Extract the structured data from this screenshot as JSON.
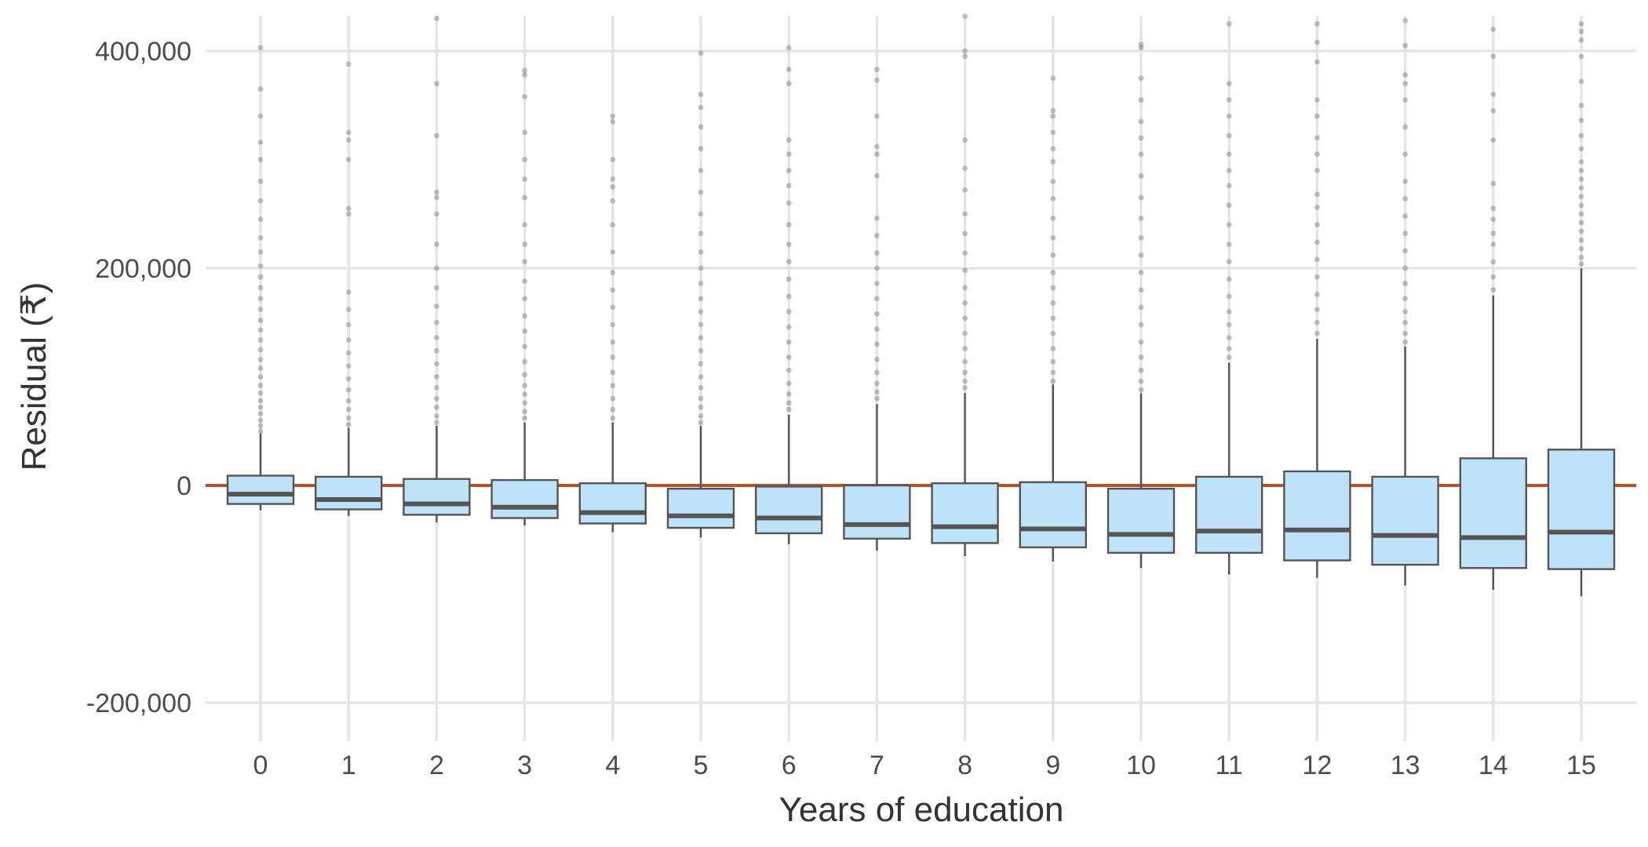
{
  "chart_data": {
    "type": "boxplot",
    "title": "",
    "xlabel": "Years of education",
    "ylabel": "Residual (₹)",
    "ylim": [
      -235000,
      430000
    ],
    "y_ticks": [
      -200000,
      0,
      200000,
      400000
    ],
    "y_tick_labels": [
      "-200,000",
      "0",
      "200,000",
      "400,000"
    ],
    "grid": true,
    "reference_line": {
      "y": 0,
      "color": "#b5522a"
    },
    "box_fill": "#bee3f8",
    "box_stroke": "#555555",
    "categories": [
      "0",
      "1",
      "2",
      "3",
      "4",
      "5",
      "6",
      "7",
      "8",
      "9",
      "10",
      "11",
      "12",
      "13",
      "14",
      "15"
    ],
    "boxes": [
      {
        "category": "0",
        "whisker_low": -23000,
        "q1": -17000,
        "median": -8000,
        "q3": 9000,
        "whisker_high": 48000,
        "outliers": [
          50000,
          55000,
          60000,
          66000,
          72000,
          78000,
          85000,
          92000,
          100000,
          108000,
          116000,
          125000,
          134000,
          143000,
          152000,
          162000,
          172000,
          182000,
          192000,
          202000,
          215000,
          228000,
          245000,
          262000,
          280000,
          300000,
          316000,
          340000,
          365000,
          403000
        ]
      },
      {
        "category": "1",
        "whisker_low": -28000,
        "q1": -22000,
        "median": -13000,
        "q3": 8000,
        "whisker_high": 53000,
        "outliers": [
          56000,
          62000,
          70000,
          78000,
          88000,
          98000,
          110000,
          122000,
          134000,
          148000,
          162000,
          178000,
          250000,
          255000,
          300000,
          318000,
          325000,
          388000
        ]
      },
      {
        "category": "2",
        "whisker_low": -34000,
        "q1": -27000,
        "median": -17000,
        "q3": 6000,
        "whisker_high": 55000,
        "outliers": [
          58000,
          64000,
          72000,
          80000,
          90000,
          100000,
          112000,
          124000,
          136000,
          150000,
          165000,
          182000,
          200000,
          222000,
          250000,
          265000,
          270000,
          322000,
          370000,
          430000
        ]
      },
      {
        "category": "3",
        "whisker_low": -37000,
        "q1": -30000,
        "median": -20000,
        "q3": 5000,
        "whisker_high": 58000,
        "outliers": [
          62000,
          68000,
          76000,
          84000,
          92000,
          102000,
          114000,
          128000,
          142000,
          156000,
          172000,
          188000,
          206000,
          222000,
          240000,
          265000,
          282000,
          300000,
          325000,
          358000,
          378000,
          382000
        ]
      },
      {
        "category": "4",
        "whisker_low": -43000,
        "q1": -35000,
        "median": -25000,
        "q3": 2000,
        "whisker_high": 58000,
        "outliers": [
          62000,
          70000,
          80000,
          92000,
          104000,
          118000,
          132000,
          148000,
          164000,
          180000,
          196000,
          215000,
          240000,
          262000,
          275000,
          282000,
          300000,
          335000,
          340000
        ]
      },
      {
        "category": "5",
        "whisker_low": -48000,
        "q1": -39000,
        "median": -28000,
        "q3": -3000,
        "whisker_high": 55000,
        "outliers": [
          58000,
          64000,
          72000,
          80000,
          90000,
          100000,
          112000,
          124000,
          136000,
          148000,
          160000,
          172000,
          186000,
          200000,
          215000,
          232000,
          250000,
          270000,
          290000,
          310000,
          330000,
          348000,
          360000,
          398000
        ]
      },
      {
        "category": "6",
        "whisker_low": -54000,
        "q1": -44000,
        "median": -30000,
        "q3": -1000,
        "whisker_high": 65000,
        "outliers": [
          70000,
          76000,
          84000,
          94000,
          106000,
          118000,
          132000,
          146000,
          160000,
          174000,
          190000,
          206000,
          222000,
          240000,
          260000,
          276000,
          290000,
          305000,
          318000,
          370000,
          383000,
          403000
        ]
      },
      {
        "category": "7",
        "whisker_low": -60000,
        "q1": -49000,
        "median": -36000,
        "q3": 0,
        "whisker_high": 75000,
        "outliers": [
          80000,
          86000,
          94000,
          104000,
          116000,
          130000,
          144000,
          158000,
          172000,
          186000,
          200000,
          214000,
          230000,
          246000,
          285000,
          305000,
          312000,
          340000,
          373000,
          383000
        ]
      },
      {
        "category": "8",
        "whisker_low": -65000,
        "q1": -53000,
        "median": -38000,
        "q3": 2000,
        "whisker_high": 85000,
        "outliers": [
          90000,
          96000,
          104000,
          114000,
          126000,
          140000,
          154000,
          168000,
          182000,
          198000,
          214000,
          232000,
          250000,
          272000,
          292000,
          318000,
          395000,
          400000,
          432000
        ]
      },
      {
        "category": "9",
        "whisker_low": -70000,
        "q1": -57000,
        "median": -40000,
        "q3": 3000,
        "whisker_high": 93000,
        "outliers": [
          96000,
          104000,
          114000,
          126000,
          140000,
          154000,
          168000,
          182000,
          196000,
          212000,
          228000,
          246000,
          264000,
          280000,
          298000,
          310000,
          325000,
          340000,
          345000,
          375000
        ]
      },
      {
        "category": "10",
        "whisker_low": -76000,
        "q1": -62000,
        "median": -45000,
        "q3": -3000,
        "whisker_high": 85000,
        "outliers": [
          88000,
          96000,
          106000,
          118000,
          132000,
          148000,
          164000,
          180000,
          196000,
          212000,
          228000,
          246000,
          265000,
          285000,
          305000,
          320000,
          335000,
          355000,
          375000,
          403000,
          406000
        ]
      },
      {
        "category": "11",
        "whisker_low": -82000,
        "q1": -62000,
        "median": -42000,
        "q3": 8000,
        "whisker_high": 113000,
        "outliers": [
          118000,
          126000,
          136000,
          148000,
          160000,
          174000,
          190000,
          206000,
          222000,
          240000,
          258000,
          276000,
          290000,
          305000,
          322000,
          340000,
          355000,
          370000,
          425000
        ]
      },
      {
        "category": "12",
        "whisker_low": -85000,
        "q1": -69000,
        "median": -41000,
        "q3": 13000,
        "whisker_high": 135000,
        "outliers": [
          140000,
          150000,
          162000,
          176000,
          192000,
          208000,
          224000,
          240000,
          256000,
          268000,
          290000,
          305000,
          320000,
          340000,
          355000,
          390000,
          408000,
          425000
        ]
      },
      {
        "category": "13",
        "whisker_low": -92000,
        "q1": -73000,
        "median": -46000,
        "q3": 8000,
        "whisker_high": 128000,
        "outliers": [
          132000,
          140000,
          150000,
          160000,
          172000,
          186000,
          200000,
          216000,
          232000,
          248000,
          264000,
          280000,
          305000,
          330000,
          355000,
          370000,
          378000,
          405000,
          428000
        ]
      },
      {
        "category": "14",
        "whisker_low": -96000,
        "q1": -76000,
        "median": -48000,
        "q3": 25000,
        "whisker_high": 175000,
        "outliers": [
          180000,
          192000,
          206000,
          222000,
          232000,
          245000,
          255000,
          278000,
          318000,
          345000,
          360000,
          395000,
          420000
        ]
      },
      {
        "category": "15",
        "whisker_low": -102000,
        "q1": -77000,
        "median": -43000,
        "q3": 33000,
        "whisker_high": 200000,
        "outliers": [
          204000,
          210000,
          218000,
          226000,
          234000,
          242000,
          250000,
          258000,
          266000,
          274000,
          282000,
          290000,
          298000,
          310000,
          322000,
          336000,
          350000,
          372000,
          395000,
          410000,
          418000,
          425000
        ]
      }
    ]
  }
}
